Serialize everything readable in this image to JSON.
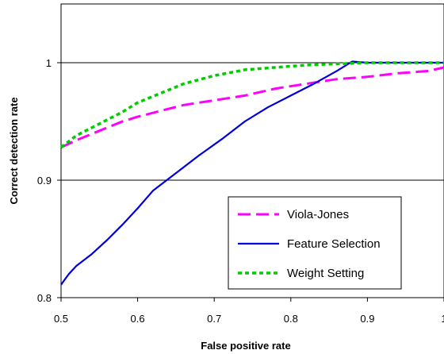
{
  "chart_data": {
    "type": "line",
    "xlabel": "False positive rate",
    "ylabel": "Correct detection rate",
    "xlim": [
      0.5,
      1.0
    ],
    "ylim": [
      0.8,
      1.05
    ],
    "xticks": [
      {
        "value": 0.5,
        "label": "0.5"
      },
      {
        "value": 0.6,
        "label": "0.6"
      },
      {
        "value": 0.7,
        "label": "0.7"
      },
      {
        "value": 0.8,
        "label": "0.8"
      },
      {
        "value": 0.9,
        "label": "0.9"
      },
      {
        "value": 1.0,
        "label": "1"
      }
    ],
    "yticks": [
      {
        "value": 0.8,
        "label": "0.8"
      },
      {
        "value": 0.9,
        "label": "0.9"
      },
      {
        "value": 1.0,
        "label": "1"
      }
    ],
    "gridlines_y": [
      0.9,
      1.0
    ],
    "legend_position": "bottom-right",
    "series": [
      {
        "name": "Viola-Jones",
        "color": "#ff00ff",
        "dash": "dash",
        "x": [
          0.5,
          0.52,
          0.55,
          0.58,
          0.6,
          0.63,
          0.66,
          0.7,
          0.74,
          0.78,
          0.82,
          0.86,
          0.9,
          0.94,
          0.98,
          1.0
        ],
        "y": [
          0.928,
          0.934,
          0.942,
          0.95,
          0.954,
          0.959,
          0.964,
          0.968,
          0.972,
          0.978,
          0.982,
          0.986,
          0.988,
          0.991,
          0.993,
          0.996
        ]
      },
      {
        "name": "Feature Selection",
        "color": "#0000dd",
        "dash": "solid",
        "x": [
          0.5,
          0.51,
          0.52,
          0.54,
          0.56,
          0.58,
          0.6,
          0.62,
          0.65,
          0.68,
          0.71,
          0.74,
          0.77,
          0.8,
          0.83,
          0.86,
          0.88,
          0.9,
          0.95,
          1.0
        ],
        "y": [
          0.811,
          0.82,
          0.827,
          0.837,
          0.849,
          0.862,
          0.876,
          0.891,
          0.906,
          0.921,
          0.935,
          0.95,
          0.962,
          0.972,
          0.982,
          0.993,
          1.001,
          1.0,
          1.0,
          1.0
        ]
      },
      {
        "name": "Weight Setting",
        "color": "#00cc00",
        "dash": "dot",
        "x": [
          0.5,
          0.52,
          0.55,
          0.58,
          0.6,
          0.63,
          0.66,
          0.7,
          0.74,
          0.78,
          0.82,
          0.86,
          0.9,
          0.95,
          1.0
        ],
        "y": [
          0.928,
          0.938,
          0.948,
          0.958,
          0.966,
          0.974,
          0.982,
          0.989,
          0.994,
          0.996,
          0.998,
          0.999,
          1.0,
          1.0,
          1.0
        ]
      }
    ]
  }
}
